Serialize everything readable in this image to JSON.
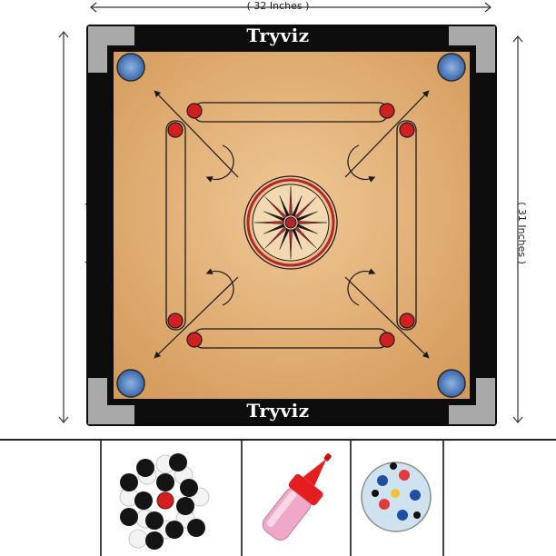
{
  "dimensions": {
    "top_label": "( 32 Inches )",
    "left_label": "( 32 Inches )",
    "right_label": "( 31 Inches )"
  },
  "board": {
    "brand_top": "Tryviz",
    "brand_bottom": "Tryviz",
    "vertical_print": "",
    "colors": {
      "frame": "#0d0d0d",
      "surface": "#e3b27a",
      "surface_edge": "#d49a5a",
      "corner_guard": "#a9a9a9",
      "pocket": "#5b88c8",
      "line": "#1a1a1a",
      "red_dot": "#d21f1f",
      "center_red": "#b3262b"
    }
  },
  "accessories": [
    {
      "name": "coins",
      "icon": "coin-set-icon"
    },
    {
      "name": "powder",
      "icon": "powder-bottle-icon"
    },
    {
      "name": "striker",
      "icon": "striker-icon"
    }
  ]
}
